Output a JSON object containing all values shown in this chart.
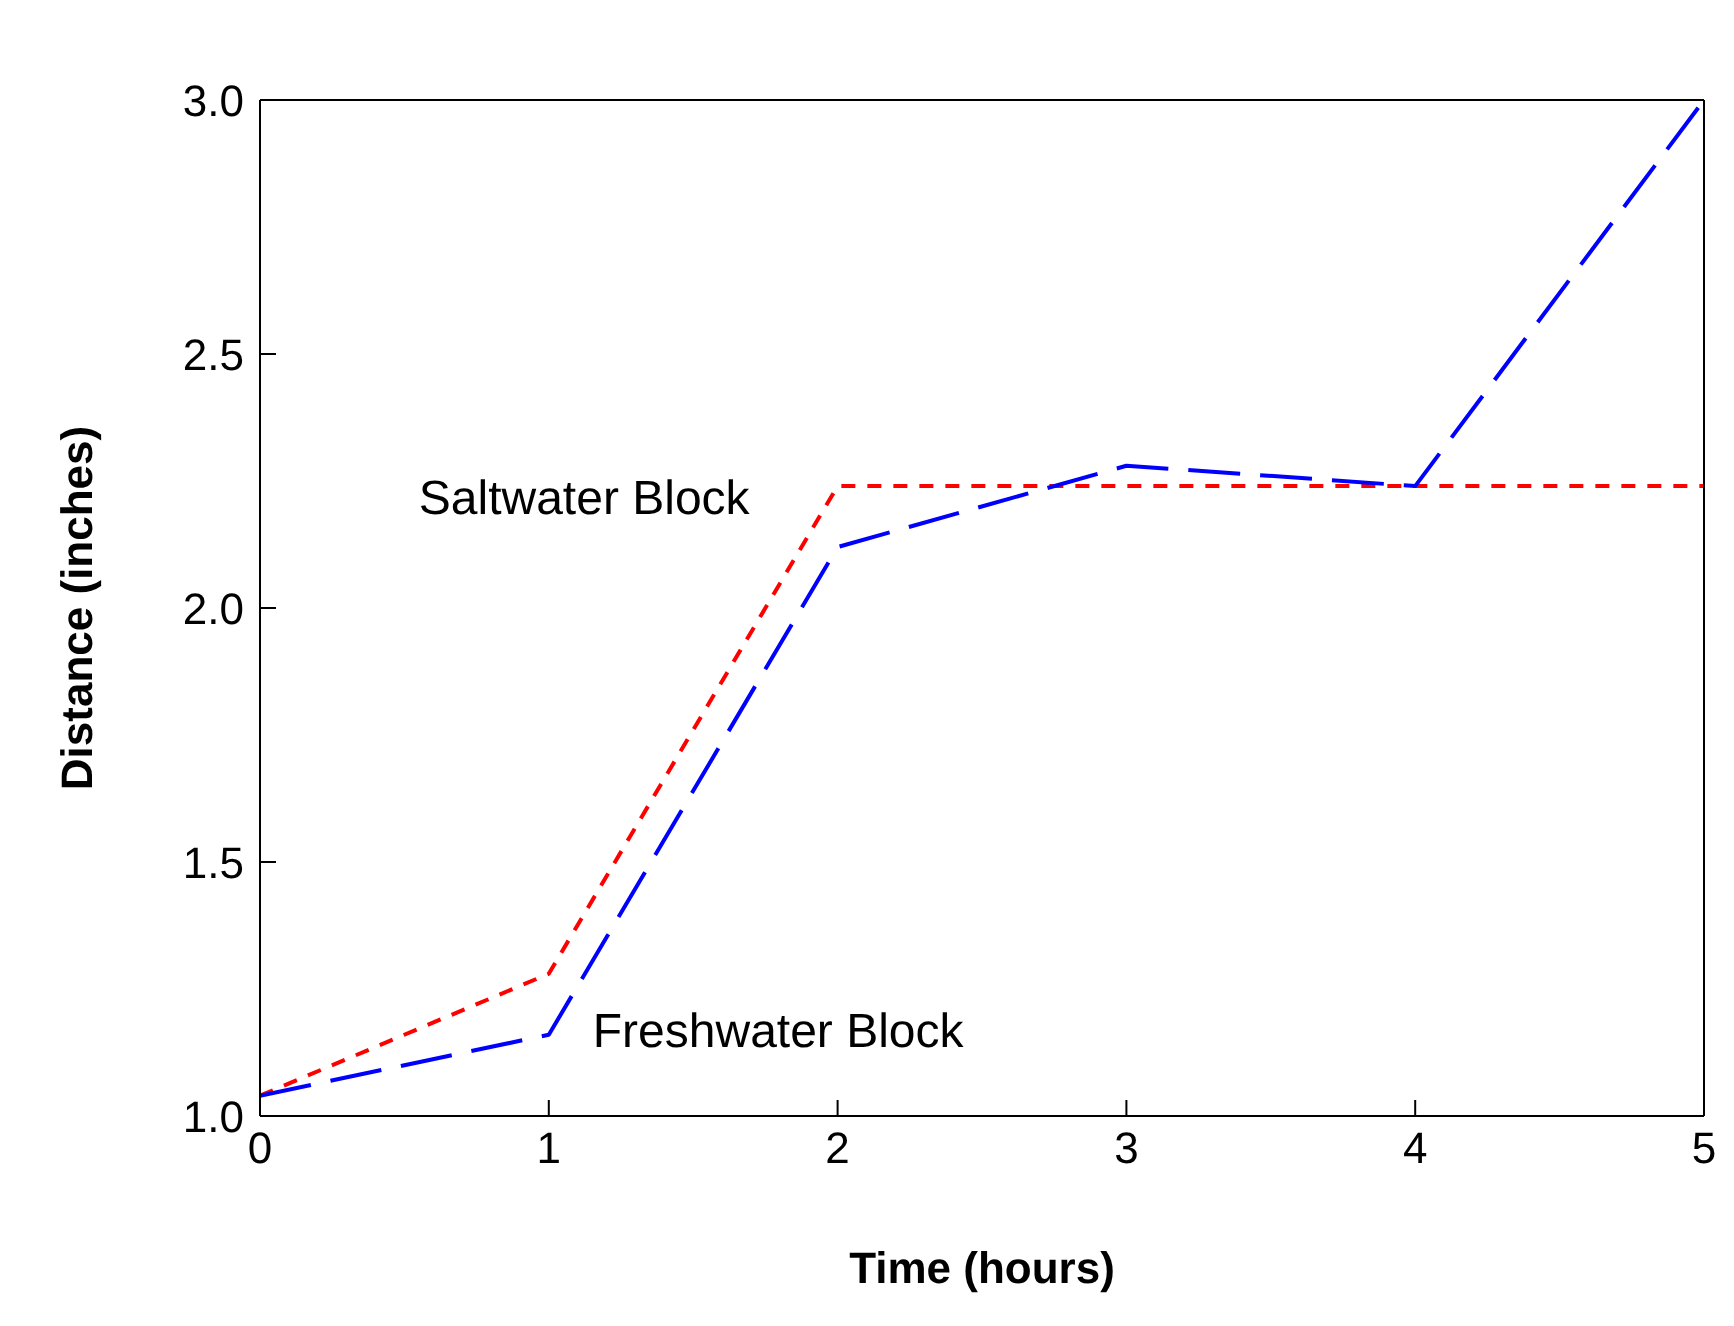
{
  "chart_data": {
    "type": "line",
    "xlabel": "Time (hours)",
    "ylabel": "Distance (inches)",
    "x": [
      0,
      1,
      2,
      3,
      4,
      5
    ],
    "xlim": [
      0,
      5
    ],
    "xticks": [
      0,
      1,
      2,
      3,
      4,
      5
    ],
    "ylim": [
      1.0,
      3.0
    ],
    "yticks": [
      {
        "value": 1.0,
        "label": "1.0"
      },
      {
        "value": 1.5,
        "label": "1.5"
      },
      {
        "value": 2.0,
        "label": "2.0"
      },
      {
        "value": 2.5,
        "label": "2.5"
      },
      {
        "value": 3.0,
        "label": "3.0"
      }
    ],
    "grid": false,
    "legend": false,
    "marker": "none",
    "line_style": "dashed",
    "series": [
      {
        "name": "Saltwater Block",
        "color": "#ff0000",
        "values": [
          1.04,
          1.28,
          2.24,
          2.24,
          2.24,
          2.24
        ]
      },
      {
        "name": "Freshwater Block",
        "color": "#0000ff",
        "values": [
          1.04,
          1.16,
          2.12,
          2.28,
          2.24,
          3.0
        ]
      }
    ]
  }
}
